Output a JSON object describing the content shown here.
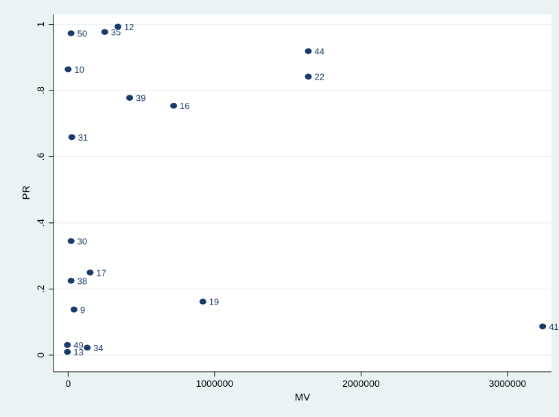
{
  "chart_data": {
    "type": "scatter",
    "title": "",
    "xlabel": "MV",
    "ylabel": "PR",
    "xlim": [
      -100000,
      3300000
    ],
    "ylim": [
      -0.05,
      1.03
    ],
    "x_ticks": [
      {
        "value": 0,
        "label": "0"
      },
      {
        "value": 1000000,
        "label": "1000000"
      },
      {
        "value": 2000000,
        "label": "2000000"
      },
      {
        "value": 3000000,
        "label": "3000000"
      }
    ],
    "y_ticks": [
      {
        "value": 0,
        "label": "0"
      },
      {
        "value": 0.2,
        "label": ".2"
      },
      {
        "value": 0.4,
        "label": ".4"
      },
      {
        "value": 0.6,
        "label": ".6"
      },
      {
        "value": 0.8,
        "label": ".8"
      },
      {
        "value": 1,
        "label": "1"
      }
    ],
    "grid": true,
    "colors": {
      "marker": "#1a3a6b",
      "label": "#1a3a6b",
      "plot_bg": "#ffffff",
      "outer_bg": "#eaf2f3",
      "grid": "#eaf2f3"
    },
    "points": [
      {
        "x": 340000,
        "y": 0.993,
        "label": "12"
      },
      {
        "x": 250000,
        "y": 0.977,
        "label": "35"
      },
      {
        "x": 20000,
        "y": 0.973,
        "label": "50"
      },
      {
        "x": 1640000,
        "y": 0.919,
        "label": "44"
      },
      {
        "x": 0,
        "y": 0.864,
        "label": "10"
      },
      {
        "x": 1640000,
        "y": 0.842,
        "label": "22"
      },
      {
        "x": 420000,
        "y": 0.778,
        "label": "39"
      },
      {
        "x": 720000,
        "y": 0.754,
        "label": "16"
      },
      {
        "x": 25000,
        "y": 0.659,
        "label": "31"
      },
      {
        "x": 20000,
        "y": 0.345,
        "label": "30"
      },
      {
        "x": 150000,
        "y": 0.25,
        "label": "17"
      },
      {
        "x": 20000,
        "y": 0.225,
        "label": "38"
      },
      {
        "x": 920000,
        "y": 0.162,
        "label": "19"
      },
      {
        "x": 40000,
        "y": 0.138,
        "label": "9"
      },
      {
        "x": 3240000,
        "y": 0.087,
        "label": "41"
      },
      {
        "x": -5000,
        "y": 0.031,
        "label": "49"
      },
      {
        "x": 130000,
        "y": 0.023,
        "label": "34"
      },
      {
        "x": -5000,
        "y": 0.01,
        "label": "13"
      }
    ]
  }
}
